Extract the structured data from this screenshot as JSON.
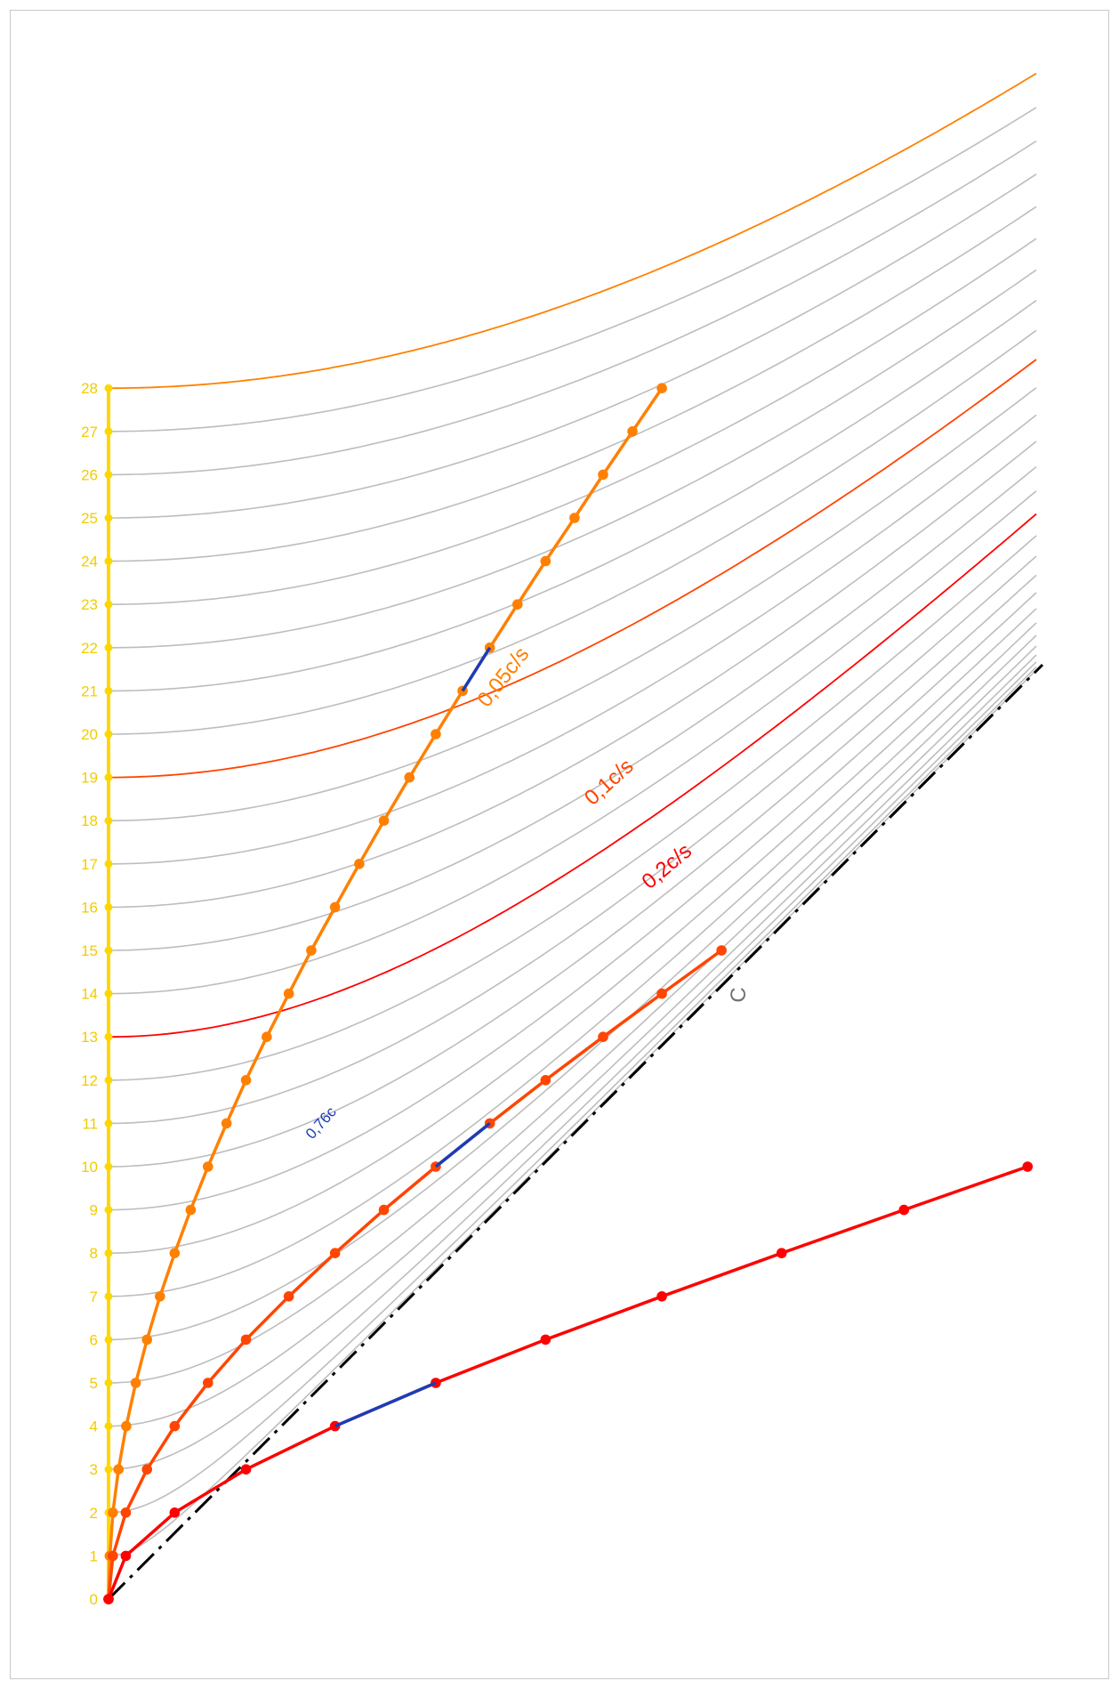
{
  "colors": {
    "axis": "#FFD700",
    "tick_text": "#F2CC00",
    "grid": "#BDBDBD",
    "light": "#000000",
    "highlight": "#1A3DB8",
    "c_label": "#707070",
    "series": {
      "low": "#FF8000",
      "mid": "#FF4500",
      "high": "#FF0000"
    }
  },
  "labels": {
    "accel_low": "0,05c/s",
    "accel_mid": "0,1c/s",
    "accel_high": "0,2c/s",
    "velocity": "0,76c",
    "light": "C"
  },
  "axis": {
    "ticks": [
      "0",
      "1",
      "2",
      "3",
      "4",
      "5",
      "6",
      "7",
      "8",
      "9",
      "10",
      "11",
      "12",
      "13",
      "14",
      "15",
      "16",
      "17",
      "18",
      "19",
      "20",
      "21",
      "22",
      "23",
      "24",
      "25",
      "26",
      "27",
      "28"
    ]
  },
  "chart_data": {
    "type": "line",
    "accelerations": [
      0.05,
      0.1,
      0.2
    ],
    "highlight_velocity": 0.76,
    "proper_time_ticks": 28,
    "trajectory_points": {
      "accel_low": [
        [
          0,
          0
        ],
        [
          0.03,
          1
        ],
        [
          0.1,
          2
        ],
        [
          0.23,
          3
        ],
        [
          0.41,
          4
        ],
        [
          0.63,
          5
        ],
        [
          0.89,
          6
        ],
        [
          1.19,
          7
        ],
        [
          1.53,
          8
        ],
        [
          1.9,
          9
        ],
        [
          2.3,
          10
        ],
        [
          2.73,
          11
        ],
        [
          3.18,
          12
        ],
        [
          3.66,
          13
        ],
        [
          4.17,
          14
        ],
        [
          4.69,
          15
        ],
        [
          5.24,
          16
        ],
        [
          5.8,
          17
        ],
        [
          6.37,
          18
        ],
        [
          6.96,
          19
        ],
        [
          7.57,
          20
        ],
        [
          8.19,
          21
        ],
        [
          8.82,
          22
        ],
        [
          9.46,
          23
        ],
        [
          10.11,
          24
        ],
        [
          10.78,
          25
        ],
        [
          11.44,
          26
        ],
        [
          12.12,
          27
        ],
        [
          12.8,
          28
        ]
      ],
      "accel_mid": [
        [
          0,
          0
        ],
        [
          0.1,
          1
        ],
        [
          0.4,
          2
        ],
        [
          0.89,
          3
        ],
        [
          1.53,
          4
        ],
        [
          2.3,
          5
        ],
        [
          3.18,
          6
        ],
        [
          4.17,
          7
        ],
        [
          5.24,
          8
        ],
        [
          6.37,
          9
        ],
        [
          7.57,
          10
        ],
        [
          8.82,
          11
        ],
        [
          10.11,
          12
        ],
        [
          11.44,
          13
        ],
        [
          12.8,
          14
        ],
        [
          14.18,
          15
        ]
      ],
      "accel_high": [
        [
          0,
          0
        ],
        [
          0.4,
          1
        ],
        [
          1.53,
          2
        ],
        [
          3.18,
          3
        ],
        [
          5.24,
          4
        ],
        [
          7.57,
          5
        ],
        [
          10.11,
          6
        ],
        [
          12.8,
          7
        ],
        [
          15.57,
          8
        ],
        [
          18.4,
          9
        ],
        [
          21.26,
          10
        ]
      ]
    }
  }
}
